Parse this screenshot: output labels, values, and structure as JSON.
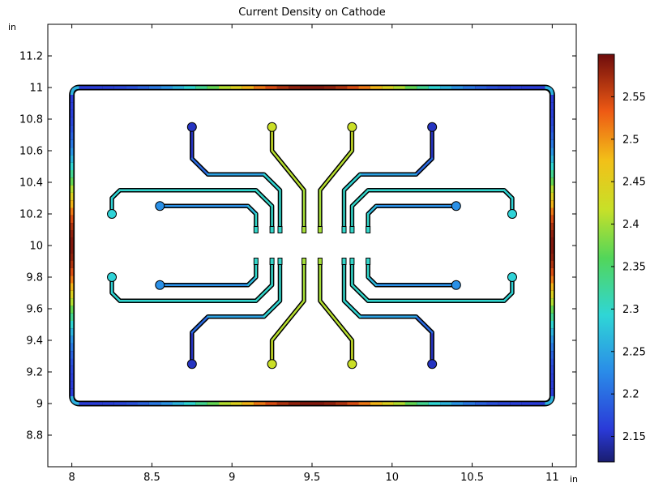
{
  "chart_data": {
    "type": "heatmap",
    "title": "Current Density on Cathode",
    "x_unit": "in",
    "y_unit": "in",
    "xlim": [
      7.85,
      11.15
    ],
    "ylim": [
      8.6,
      11.4
    ],
    "x_ticks": [
      "8",
      "8.5",
      "9",
      "9.5",
      "10",
      "10.5",
      "11"
    ],
    "y_ticks": [
      "8.8",
      "9",
      "9.2",
      "9.4",
      "9.6",
      "9.8",
      "10",
      "10.2",
      "10.4",
      "10.6",
      "10.8",
      "11",
      "11.2"
    ],
    "colorbar": {
      "range": [
        2.12,
        2.6
      ],
      "ticks": [
        "2.15",
        "2.2",
        "2.25",
        "2.3",
        "2.35",
        "2.4",
        "2.45",
        "2.5",
        "2.55"
      ],
      "colormap": "rainbow"
    },
    "frame": {
      "xmin": 8.0,
      "xmax": 11.0,
      "ymin": 9.0,
      "ymax": 11.0
    },
    "traces": [
      {
        "path": [
          [
            8.75,
            10.75
          ],
          [
            8.75,
            10.55
          ],
          [
            8.85,
            10.45
          ],
          [
            9.2,
            10.45
          ],
          [
            9.3,
            10.35
          ],
          [
            9.3,
            10.1
          ]
        ],
        "pad_value": 2.15,
        "line_value": 2.3
      },
      {
        "path": [
          [
            9.25,
            10.75
          ],
          [
            9.25,
            10.6
          ],
          [
            9.45,
            10.35
          ],
          [
            9.45,
            10.1
          ]
        ],
        "pad_value": 2.42,
        "line_value": 2.4
      },
      {
        "path": [
          [
            9.75,
            10.75
          ],
          [
            9.75,
            10.6
          ],
          [
            9.55,
            10.35
          ],
          [
            9.55,
            10.1
          ]
        ],
        "pad_value": 2.42,
        "line_value": 2.4
      },
      {
        "path": [
          [
            10.25,
            10.75
          ],
          [
            10.25,
            10.55
          ],
          [
            10.15,
            10.45
          ],
          [
            9.8,
            10.45
          ],
          [
            9.7,
            10.35
          ],
          [
            9.7,
            10.1
          ]
        ],
        "pad_value": 2.15,
        "line_value": 2.3
      },
      {
        "path": [
          [
            8.25,
            10.2
          ],
          [
            8.25,
            10.3
          ],
          [
            8.3,
            10.35
          ],
          [
            9.15,
            10.35
          ],
          [
            9.25,
            10.25
          ],
          [
            9.25,
            10.1
          ]
        ],
        "pad_value": 2.29,
        "line_value": 2.3
      },
      {
        "path": [
          [
            8.55,
            10.25
          ],
          [
            9.1,
            10.25
          ],
          [
            9.15,
            10.2
          ],
          [
            9.15,
            10.1
          ]
        ],
        "pad_value": 2.23,
        "line_value": 2.3
      },
      {
        "path": [
          [
            10.75,
            10.2
          ],
          [
            10.75,
            10.3
          ],
          [
            10.7,
            10.35
          ],
          [
            9.85,
            10.35
          ],
          [
            9.75,
            10.25
          ],
          [
            9.75,
            10.1
          ]
        ],
        "pad_value": 2.29,
        "line_value": 2.3
      },
      {
        "path": [
          [
            10.4,
            10.25
          ],
          [
            9.9,
            10.25
          ],
          [
            9.85,
            10.2
          ],
          [
            9.85,
            10.1
          ]
        ],
        "pad_value": 2.23,
        "line_value": 2.3
      },
      {
        "path": [
          [
            8.75,
            9.25
          ],
          [
            8.75,
            9.45
          ],
          [
            8.85,
            9.55
          ],
          [
            9.2,
            9.55
          ],
          [
            9.3,
            9.65
          ],
          [
            9.3,
            9.9
          ]
        ],
        "pad_value": 2.15,
        "line_value": 2.3
      },
      {
        "path": [
          [
            9.25,
            9.25
          ],
          [
            9.25,
            9.4
          ],
          [
            9.45,
            9.65
          ],
          [
            9.45,
            9.9
          ]
        ],
        "pad_value": 2.42,
        "line_value": 2.4
      },
      {
        "path": [
          [
            9.75,
            9.25
          ],
          [
            9.75,
            9.4
          ],
          [
            9.55,
            9.65
          ],
          [
            9.55,
            9.9
          ]
        ],
        "pad_value": 2.42,
        "line_value": 2.4
      },
      {
        "path": [
          [
            10.25,
            9.25
          ],
          [
            10.25,
            9.45
          ],
          [
            10.15,
            9.55
          ],
          [
            9.8,
            9.55
          ],
          [
            9.7,
            9.65
          ],
          [
            9.7,
            9.9
          ]
        ],
        "pad_value": 2.15,
        "line_value": 2.3
      },
      {
        "path": [
          [
            8.25,
            9.8
          ],
          [
            8.25,
            9.7
          ],
          [
            8.3,
            9.65
          ],
          [
            9.15,
            9.65
          ],
          [
            9.25,
            9.75
          ],
          [
            9.25,
            9.9
          ]
        ],
        "pad_value": 2.29,
        "line_value": 2.3
      },
      {
        "path": [
          [
            8.55,
            9.75
          ],
          [
            9.1,
            9.75
          ],
          [
            9.15,
            9.8
          ],
          [
            9.15,
            9.9
          ]
        ],
        "pad_value": 2.23,
        "line_value": 2.3
      },
      {
        "path": [
          [
            10.75,
            9.8
          ],
          [
            10.75,
            9.7
          ],
          [
            10.7,
            9.65
          ],
          [
            9.85,
            9.65
          ],
          [
            9.75,
            9.75
          ],
          [
            9.75,
            9.9
          ]
        ],
        "pad_value": 2.29,
        "line_value": 2.3
      },
      {
        "path": [
          [
            10.4,
            9.75
          ],
          [
            9.9,
            9.75
          ],
          [
            9.85,
            9.8
          ],
          [
            9.85,
            9.9
          ]
        ],
        "pad_value": 2.23,
        "line_value": 2.3
      }
    ]
  }
}
